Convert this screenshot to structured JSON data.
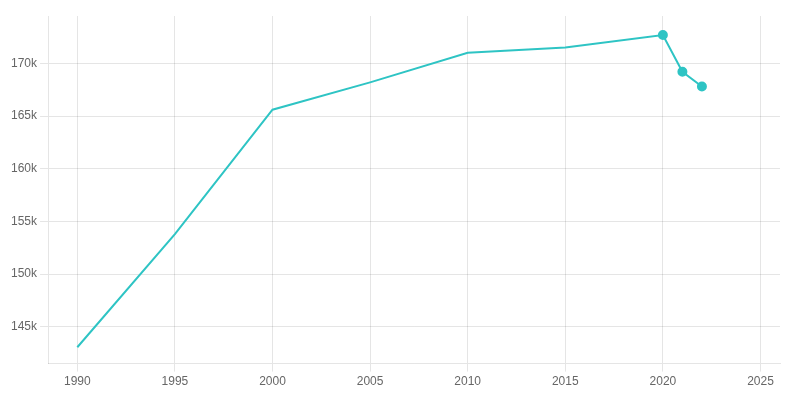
{
  "chart_data": {
    "type": "line",
    "x": [
      1990,
      1995,
      2000,
      2005,
      2010,
      2015,
      2020,
      2021,
      2022
    ],
    "series": [
      {
        "color": "#2ec4c4",
        "marker": "none",
        "line_style": "solid",
        "values": [
          143050,
          153800,
          165600,
          168200,
          171000,
          171500,
          172700,
          169200,
          167800
        ]
      },
      {
        "type": "scatter",
        "color": "#2ec4c4",
        "marker": "o",
        "values": [
          null,
          null,
          null,
          null,
          null,
          null,
          172700,
          169200,
          167800
        ]
      }
    ],
    "xlim": [
      1988.5,
      2026
    ],
    "xticks": [
      1990,
      1995,
      2000,
      2005,
      2010,
      2015,
      2020,
      2025
    ],
    "ylim": [
      141500,
      174500
    ],
    "yticks": [
      {
        "value": 145000,
        "label": "145k"
      },
      {
        "value": 150000,
        "label": "150k"
      },
      {
        "value": 155000,
        "label": "155k"
      },
      {
        "value": 160000,
        "label": "160k"
      },
      {
        "value": 165000,
        "label": "165k"
      },
      {
        "value": 170000,
        "label": "170k"
      }
    ],
    "grid": true
  }
}
